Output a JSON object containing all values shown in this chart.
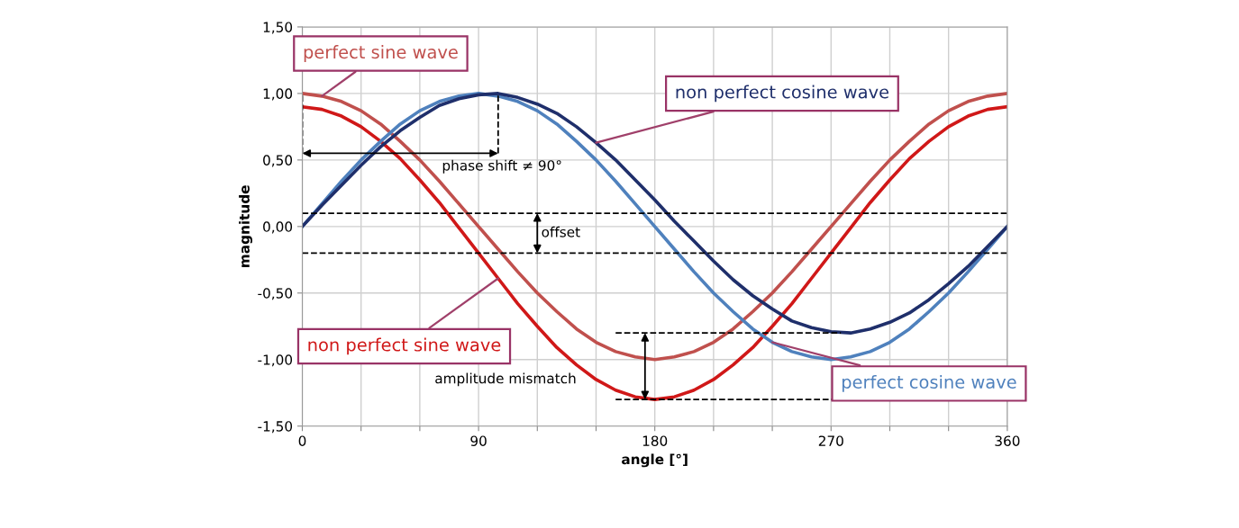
{
  "chart_data": {
    "type": "line",
    "xlabel": "angle [°]",
    "ylabel": "magnitude",
    "x": [
      0,
      10,
      20,
      30,
      40,
      50,
      60,
      70,
      80,
      90,
      100,
      110,
      120,
      130,
      140,
      150,
      160,
      170,
      180,
      190,
      200,
      210,
      220,
      230,
      240,
      250,
      260,
      270,
      280,
      290,
      300,
      310,
      320,
      330,
      340,
      350,
      360
    ],
    "series": [
      {
        "name": "perfect sine wave",
        "color": "#c0504d",
        "values": [
          1,
          0.98,
          0.94,
          0.87,
          0.77,
          0.64,
          0.5,
          0.34,
          0.17,
          0,
          -0.17,
          -0.34,
          -0.5,
          -0.64,
          -0.77,
          -0.87,
          -0.94,
          -0.98,
          -1,
          -0.98,
          -0.94,
          -0.87,
          -0.77,
          -0.64,
          -0.5,
          -0.34,
          -0.17,
          0,
          0.17,
          0.34,
          0.5,
          0.64,
          0.77,
          0.87,
          0.94,
          0.98,
          1
        ]
      },
      {
        "name": "non perfect sine wave",
        "color": "#d01818",
        "values": [
          0.9,
          0.88,
          0.83,
          0.75,
          0.64,
          0.51,
          0.35,
          0.18,
          -0.01,
          -0.2,
          -0.39,
          -0.58,
          -0.75,
          -0.91,
          -1.04,
          -1.15,
          -1.23,
          -1.28,
          -1.3,
          -1.28,
          -1.23,
          -1.15,
          -1.04,
          -0.91,
          -0.75,
          -0.58,
          -0.39,
          -0.2,
          -0.01,
          0.18,
          0.35,
          0.51,
          0.64,
          0.75,
          0.83,
          0.88,
          0.9
        ]
      },
      {
        "name": "perfect cosine wave",
        "color": "#4f81bd",
        "values": [
          0,
          0.17,
          0.34,
          0.5,
          0.64,
          0.77,
          0.87,
          0.94,
          0.98,
          1,
          0.98,
          0.94,
          0.87,
          0.77,
          0.64,
          0.5,
          0.34,
          0.17,
          0,
          -0.17,
          -0.34,
          -0.5,
          -0.64,
          -0.77,
          -0.87,
          -0.94,
          -0.98,
          -1,
          -0.98,
          -0.94,
          -0.87,
          -0.77,
          -0.64,
          -0.5,
          -0.34,
          -0.17,
          0
        ]
      },
      {
        "name": "non perfect cosine wave",
        "color": "#1f2f6b",
        "values": [
          0,
          0.16,
          0.31,
          0.46,
          0.6,
          0.72,
          0.82,
          0.91,
          0.96,
          0.99,
          1,
          0.97,
          0.92,
          0.85,
          0.75,
          0.63,
          0.5,
          0.35,
          0.2,
          0.04,
          -0.11,
          -0.26,
          -0.4,
          -0.52,
          -0.62,
          -0.71,
          -0.76,
          -0.79,
          -0.8,
          -0.77,
          -0.72,
          -0.65,
          -0.55,
          -0.43,
          -0.3,
          -0.15,
          0
        ]
      }
    ],
    "xlim": [
      0,
      360
    ],
    "ylim": [
      -1.5,
      1.5
    ],
    "xticks": [
      0,
      {
        "value": 30,
        "label": null
      },
      {
        "value": 60,
        "label": null
      },
      90,
      {
        "value": 120,
        "label": null
      },
      {
        "value": 150,
        "label": null
      },
      180,
      {
        "value": 210,
        "label": null
      },
      {
        "value": 240,
        "label": null
      },
      270,
      {
        "value": 300,
        "label": null
      },
      {
        "value": 330,
        "label": null
      },
      360
    ],
    "yticks": [
      {
        "value": -1.5,
        "label": "-1,50"
      },
      {
        "value": -1,
        "label": "-1,00"
      },
      {
        "value": -0.5,
        "label": "-0,50"
      },
      {
        "value": 0,
        "label": "0,00"
      },
      {
        "value": 0.5,
        "label": "0,50"
      },
      {
        "value": 1,
        "label": "1,00"
      },
      {
        "value": 1.5,
        "label": "1,50"
      }
    ],
    "grid": true,
    "ref_lines": [
      {
        "axis": "y",
        "value": 0.1,
        "color": "#000000",
        "line_style": "dashed"
      },
      {
        "axis": "y",
        "value": -0.2,
        "color": "#000000",
        "line_style": "dashed"
      }
    ],
    "annotations": [
      {
        "text": "phase shift ≠ 90°",
        "x": 100,
        "y": 1
      },
      "offset",
      "amplitude mismatch"
    ]
  }
}
